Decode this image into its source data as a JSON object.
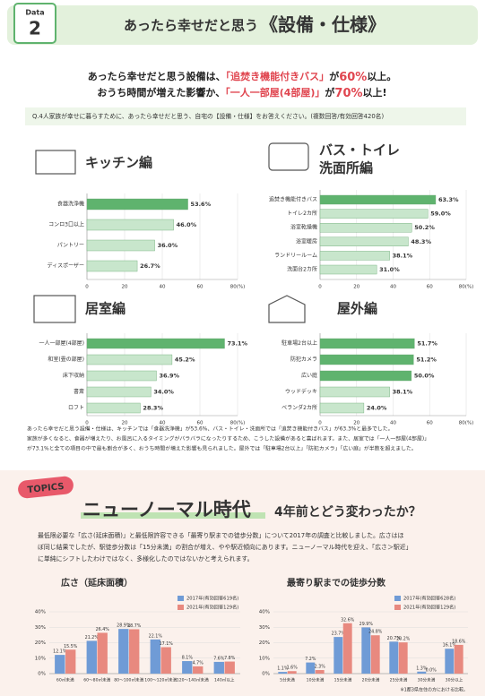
{
  "header": {
    "badge_top": "Data",
    "badge_num": "2",
    "title_prefix": "あったら幸せだと思う",
    "title_main": "《設備・仕様》"
  },
  "intro": {
    "lines": [
      [
        "あったら幸せだと思う設備は、",
        "「追焚き機能付きバス」",
        "が",
        "60%",
        "以上。"
      ],
      [
        "おうち時間が増えた影響か、",
        "「一人一部屋(4部屋)」",
        "が",
        "70%",
        "以上!"
      ]
    ]
  },
  "question": "Q.4人家族が幸せに暮らすために、あったら幸せだと思う、自宅の【設備・仕様】をお答えください。(複数回答/有効回答420名)",
  "chart_data": [
    {
      "type": "hbar",
      "title": "キッチン編",
      "categories": [
        "食器洗浄機",
        "コンロ3口以上",
        "パントリー",
        "ディスポーザー"
      ],
      "values": [
        53.6,
        46.0,
        36.0,
        26.7
      ],
      "value_labels": [
        "53.6%",
        "46.0%",
        "36.0%",
        "26.7%"
      ],
      "colors": [
        "#5fb36e",
        "#c8e6cc",
        "#c8e6cc",
        "#c8e6cc"
      ],
      "xlim": [
        0,
        80
      ],
      "xticks": [
        0,
        20,
        40,
        60,
        {
          "value": 80,
          "label": "80(%)"
        }
      ],
      "grid": true
    },
    {
      "type": "hbar",
      "title_lines": [
        "バス・トイレ",
        "洗面所編"
      ],
      "categories": [
        "追焚き機能付きバス",
        "トイレ2カ所",
        "浴室乾燥機",
        "浴室暖房",
        "ランドリールーム",
        "洗面台2カ所"
      ],
      "values": [
        63.3,
        59.0,
        50.2,
        48.3,
        38.1,
        31.0
      ],
      "value_labels": [
        "63.3%",
        "59.0%",
        "50.2%",
        "48.3%",
        "38.1%",
        "31.0%"
      ],
      "colors": [
        "#5fb36e",
        "#c8e6cc",
        "#c8e6cc",
        "#c8e6cc",
        "#c8e6cc",
        "#c8e6cc"
      ],
      "xlim": [
        0,
        80
      ],
      "xticks": [
        0,
        20,
        40,
        60,
        {
          "value": 80,
          "label": "80(%)"
        }
      ],
      "grid": true
    },
    {
      "type": "hbar",
      "title": "居室編",
      "categories": [
        "一人一部屋(4部屋)",
        "和室(畳の部屋)",
        "床下収納",
        "書斎",
        "ロフト"
      ],
      "values": [
        73.1,
        45.2,
        36.9,
        34.0,
        28.3
      ],
      "value_labels": [
        "73.1%",
        "45.2%",
        "36.9%",
        "34.0%",
        "28.3%"
      ],
      "colors": [
        "#5fb36e",
        "#c8e6cc",
        "#c8e6cc",
        "#c8e6cc",
        "#c8e6cc"
      ],
      "xlim": [
        0,
        80
      ],
      "xticks": [
        0,
        20,
        40,
        60,
        {
          "value": 80,
          "label": "80(%)"
        }
      ],
      "grid": true
    },
    {
      "type": "hbar",
      "title": "屋外編",
      "categories": [
        "駐車場2台以上",
        "防犯カメラ",
        "広い庭",
        "ウッドデッキ",
        "ベランダ2カ所"
      ],
      "values": [
        51.7,
        51.2,
        50.0,
        38.1,
        24.0
      ],
      "value_labels": [
        "51.7%",
        "51.2%",
        "50.0%",
        "38.1%",
        "24.0%"
      ],
      "colors": [
        "#5fb36e",
        "#5fb36e",
        "#5fb36e",
        "#c8e6cc",
        "#c8e6cc"
      ],
      "xlim": [
        0,
        80
      ],
      "xticks": [
        0,
        20,
        40,
        60,
        {
          "value": 80,
          "label": "80(%)"
        }
      ],
      "grid": true
    },
    {
      "type": "grouped-bar",
      "title": "広さ（延床面積）",
      "categories": [
        "60㎡未満",
        "60〜80㎡未満",
        "80〜100㎡未満",
        "100〜120㎡未満",
        "120〜140㎡未満",
        "140㎡以上"
      ],
      "series": [
        {
          "name": "2017年(有効回答619名)",
          "color": "#6f9bd6",
          "values": [
            12.1,
            21.2,
            28.9,
            22.1,
            8.1,
            7.6
          ],
          "value_labels": [
            "12.1%",
            "21.2%",
            "28.9%",
            "22.1%",
            "8.1%",
            "7.6%"
          ]
        },
        {
          "name": "2021年(有効回答129名)",
          "color": "#e8897f",
          "values": [
            15.5,
            26.4,
            28.7,
            17.1,
            4.7,
            7.8
          ],
          "value_labels": [
            "15.5%",
            "26.4%",
            "28.7%",
            "17.1%",
            "4.7%",
            "7.8%"
          ]
        }
      ],
      "ylim": [
        0,
        40
      ],
      "yticks": [
        {
          "value": 0,
          "label": "0%"
        },
        {
          "value": 10,
          "label": "10%"
        },
        {
          "value": 20,
          "label": "20%"
        },
        {
          "value": 30,
          "label": "30%"
        },
        {
          "value": 40,
          "label": "40%"
        }
      ],
      "grid": true
    },
    {
      "type": "grouped-bar",
      "title": "最寄り駅までの徒歩分数",
      "categories": [
        "5分未満",
        "10分未満",
        "15分未満",
        "20分未満",
        "25分未満",
        "30分未満",
        "30分以上"
      ],
      "series": [
        {
          "name": "2017年(有効回答628名)",
          "color": "#6f9bd6",
          "values": [
            1.1,
            7.2,
            23.7,
            29.9,
            20.7,
            1.3,
            16.1
          ],
          "value_labels": [
            "1.1%",
            "7.2%",
            "23.7%",
            "29.9%",
            "20.7%",
            "1.3%",
            "16.1%"
          ]
        },
        {
          "name": "2021年(有効回答129名)",
          "color": "#e8897f",
          "values": [
            1.6,
            2.3,
            32.6,
            24.8,
            20.2,
            0.0,
            18.6
          ],
          "value_labels": [
            "1.6%",
            "2.3%",
            "32.6%",
            "24.8%",
            "20.2%",
            "0.0%",
            "18.6%"
          ]
        }
      ],
      "ylim": [
        0,
        40
      ],
      "yticks": [
        {
          "value": 0,
          "label": "0%"
        },
        {
          "value": 10,
          "label": "10%"
        },
        {
          "value": 20,
          "label": "20%"
        },
        {
          "value": 30,
          "label": "30%"
        },
        {
          "value": 40,
          "label": "40%"
        }
      ],
      "grid": true,
      "footnote": "※1都3県在住の方における比較。"
    }
  ],
  "summary": {
    "lines": [
      "あったら幸せだと思う設備・仕様は、キッチンでは「食器洗浄機」が53.6%、バス・トイレ・洗面所では「追焚き機能付きバス」が63.3%と最多でした。",
      "家族が多くなると、食器が増えたり、お風呂に入るタイミングがバラバラになったりするため、こうした設備があると喜ばれます。また、居室では「一人一部屋(4部屋)」",
      "が73.1%と全ての項目の中で最も割合が多く、おうち時間が増えた影響も見られました。屋外では「駐車場2台以上」「防犯カメラ」「広い庭」が半数を超えました。"
    ]
  },
  "topics": {
    "badge": "TOPICS",
    "title": "ニューノーマル時代",
    "subtitle": "4年前とどう変わったか？",
    "lines": [
      "最低限必要な「広さ(延床面積)」と最低限許容できる「最寄り駅までの徒歩分数」について2017年の調査と比較しました。広さはほ",
      "ぼ同じ結果でしたが、駅徒歩分数は「15分未満」の割合が増え、やや駅近傾向にあります。ニューノーマル時代を迎え、「広さ＞駅近」",
      "に単純にシフトしたわけではなく、多様化したのではないかと考えられます。"
    ]
  }
}
